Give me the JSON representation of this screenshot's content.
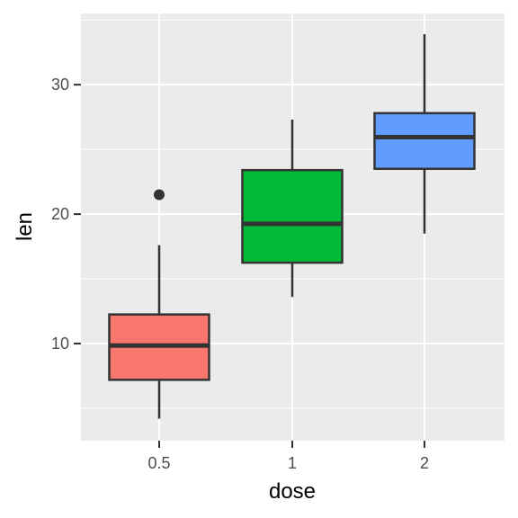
{
  "chart_data": {
    "type": "boxplot",
    "xlabel": "dose",
    "ylabel": "len",
    "categories": [
      "0.5",
      "1",
      "2"
    ],
    "ylim": [
      2.5,
      35.5
    ],
    "y_major_ticks": [
      10,
      20,
      30
    ],
    "y_minor_ticks": [
      5,
      15,
      25,
      35
    ],
    "grid": true,
    "legend": "none",
    "colors": {
      "panel_background": "#ebebeb",
      "grid_line": "#ffffff",
      "box_outline": "#333333",
      "tick_mark": "#333333"
    },
    "boxes": [
      {
        "category": "0.5",
        "fill": "#f8766d",
        "whisker_low": 4.2,
        "q1": 7.2,
        "median": 9.85,
        "q3": 12.25,
        "whisker_high": 17.6,
        "outliers": [
          21.5
        ]
      },
      {
        "category": "1",
        "fill": "#00ba38",
        "whisker_low": 13.6,
        "q1": 16.25,
        "median": 19.25,
        "q3": 23.4,
        "whisker_high": 27.3,
        "outliers": []
      },
      {
        "category": "2",
        "fill": "#619cff",
        "whisker_low": 18.5,
        "q1": 23.5,
        "median": 25.95,
        "q3": 27.8,
        "whisker_high": 33.9,
        "outliers": []
      }
    ]
  }
}
